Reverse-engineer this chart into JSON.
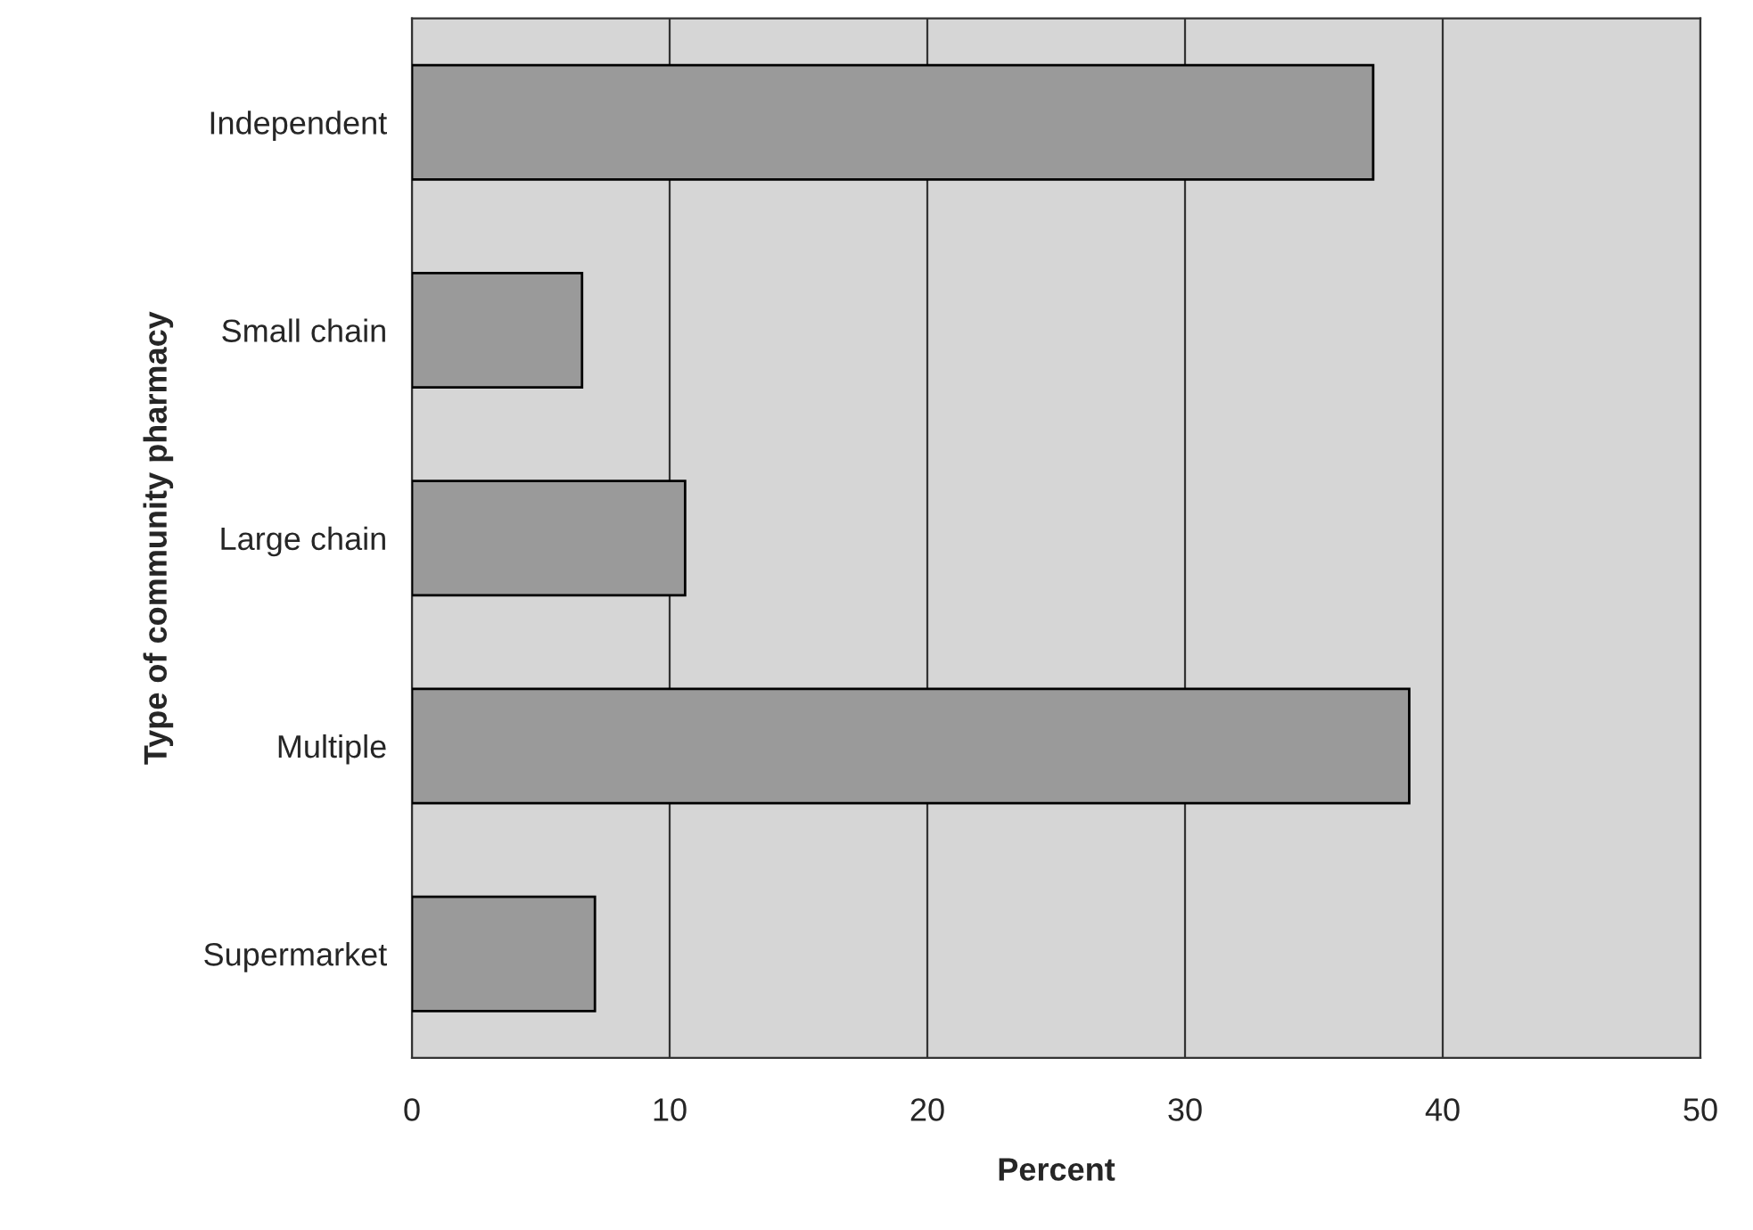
{
  "chart_data": {
    "type": "bar",
    "orientation": "horizontal",
    "xlabel": "Percent",
    "ylabel": "Type of community pharmacy",
    "categories": [
      "Independent",
      "Small chain",
      "Large chain",
      "Multiple",
      "Supermarket"
    ],
    "values": [
      37.3,
      6.6,
      10.6,
      38.7,
      7.1
    ],
    "color": "#9a9a9a",
    "xlim": [
      0,
      50
    ],
    "xticks": [
      0,
      10,
      20,
      30,
      40,
      50
    ],
    "grid": "x"
  }
}
